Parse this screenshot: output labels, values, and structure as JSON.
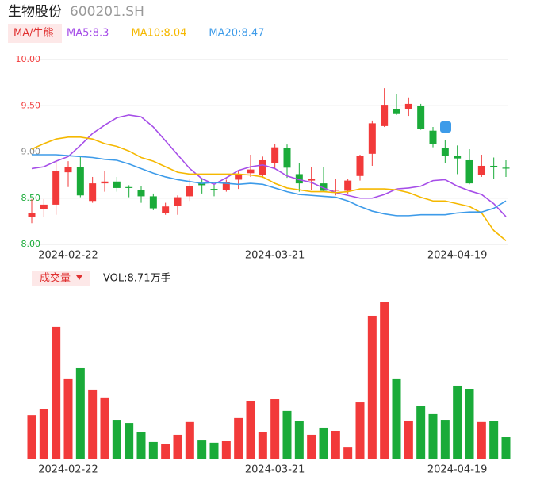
{
  "header": {
    "name": "生物股份",
    "code": "600201.SH"
  },
  "chart_data": {
    "type": "candlestick",
    "indicator_button": "MA/牛熊",
    "categories": [
      null,
      null,
      null,
      "2024-02-22",
      null,
      null,
      null,
      null,
      null,
      null,
      null,
      null,
      null,
      null,
      null,
      null,
      null,
      null,
      null,
      null,
      "2024-03-21",
      null,
      null,
      null,
      null,
      null,
      null,
      null,
      null,
      null,
      null,
      null,
      null,
      null,
      null,
      "2024-04-19",
      null,
      null,
      null,
      null
    ],
    "open": [
      8.3,
      8.38,
      8.43,
      8.78,
      8.84,
      8.47,
      8.66,
      8.68,
      8.62,
      8.59,
      8.52,
      8.34,
      8.42,
      8.52,
      8.66,
      8.6,
      8.59,
      8.7,
      8.77,
      8.75,
      8.88,
      9.04,
      8.76,
      8.69,
      8.66,
      8.58,
      8.58,
      8.74,
      8.98,
      9.28,
      9.46,
      9.46,
      9.5,
      9.23,
      9.04,
      8.96,
      8.91,
      8.75,
      8.85,
      8.83
    ],
    "high": [
      8.49,
      8.49,
      8.9,
      8.9,
      8.95,
      8.73,
      8.79,
      8.73,
      8.64,
      8.63,
      8.55,
      8.45,
      8.53,
      8.71,
      8.71,
      8.65,
      8.7,
      8.79,
      8.97,
      8.95,
      9.09,
      9.08,
      8.88,
      8.84,
      8.84,
      8.71,
      8.71,
      8.97,
      9.34,
      9.69,
      9.63,
      9.59,
      9.52,
      9.27,
      9.13,
      9.07,
      9.03,
      8.97,
      8.94,
      8.91
    ],
    "low": [
      8.23,
      8.3,
      8.32,
      8.62,
      8.51,
      8.45,
      8.57,
      8.57,
      8.51,
      8.45,
      8.37,
      8.32,
      8.32,
      8.47,
      8.55,
      8.52,
      8.57,
      8.6,
      8.73,
      8.72,
      8.82,
      8.72,
      8.57,
      8.59,
      8.57,
      8.53,
      8.55,
      8.69,
      8.85,
      9.27,
      9.4,
      9.39,
      9.24,
      9.05,
      8.88,
      8.76,
      8.65,
      8.73,
      8.71,
      8.73
    ],
    "close": [
      8.34,
      8.43,
      8.79,
      8.84,
      8.53,
      8.66,
      8.68,
      8.61,
      8.61,
      8.52,
      8.39,
      8.41,
      8.51,
      8.63,
      8.64,
      8.59,
      8.67,
      8.76,
      8.81,
      8.91,
      9.05,
      8.83,
      8.66,
      8.71,
      8.58,
      8.59,
      8.69,
      8.96,
      9.31,
      9.51,
      9.41,
      9.52,
      9.25,
      9.09,
      8.96,
      8.93,
      8.66,
      8.85,
      8.84,
      8.82
    ],
    "up_color": "#f23a3a",
    "down_color": "#1aab39",
    "ylim": [
      8.0,
      10.0
    ],
    "yticks": [
      {
        "value": 10,
        "label": "10.00"
      },
      {
        "value": 9.5,
        "label": "9.50"
      },
      {
        "value": 9,
        "label": "9.00"
      },
      {
        "value": 8.5,
        "label": "8.50"
      },
      {
        "value": 8,
        "label": "8.00"
      }
    ],
    "ytick_colors": [
      "#f23a3a",
      "#f23a3a",
      "#888888",
      "#1aab39",
      "#1aab39"
    ],
    "grid": true,
    "series": [
      {
        "name": "MA5:8.3",
        "color": "#a64ee8",
        "values": [
          8.82,
          8.84,
          8.9,
          8.95,
          9.07,
          9.2,
          9.29,
          9.37,
          9.4,
          9.38,
          9.27,
          9.12,
          8.97,
          8.82,
          8.71,
          8.65,
          8.72,
          8.8,
          8.84,
          8.86,
          8.82,
          8.74,
          8.7,
          8.67,
          8.61,
          8.56,
          8.53,
          8.5,
          8.5,
          8.54,
          8.6,
          8.61,
          8.63,
          8.69,
          8.7,
          8.63,
          8.58,
          8.54,
          8.44,
          8.3
        ]
      },
      {
        "name": "MA10:8.04",
        "color": "#f5b800",
        "values": [
          9.03,
          9.09,
          9.14,
          9.16,
          9.16,
          9.14,
          9.09,
          9.06,
          9.01,
          8.94,
          8.9,
          8.84,
          8.78,
          8.76,
          8.76,
          8.76,
          8.76,
          8.76,
          8.75,
          8.73,
          8.66,
          8.61,
          8.59,
          8.57,
          8.57,
          8.56,
          8.57,
          8.6,
          8.6,
          8.6,
          8.59,
          8.56,
          8.51,
          8.47,
          8.47,
          8.44,
          8.41,
          8.34,
          8.15,
          8.04
        ]
      },
      {
        "name": "MA20:8.47",
        "color": "#3d9be9",
        "values": [
          8.97,
          8.97,
          8.97,
          8.96,
          8.95,
          8.94,
          8.92,
          8.91,
          8.87,
          8.82,
          8.77,
          8.73,
          8.7,
          8.68,
          8.66,
          8.67,
          8.66,
          8.65,
          8.66,
          8.65,
          8.61,
          8.57,
          8.54,
          8.53,
          8.52,
          8.51,
          8.47,
          8.41,
          8.36,
          8.33,
          8.31,
          8.31,
          8.32,
          8.32,
          8.32,
          8.34,
          8.35,
          8.35,
          8.39,
          8.47
        ]
      }
    ],
    "volume": {
      "button": "成交量",
      "label": "VOL:8.71万手",
      "values": [
        17.7,
        20.3,
        53.6,
        32.3,
        36.8,
        28.1,
        24.9,
        15.8,
        14.5,
        10.7,
        6.8,
        6.1,
        9.7,
        14.9,
        7.4,
        6.5,
        7.1,
        16.5,
        23.3,
        10.7,
        24.2,
        19.4,
        15.2,
        9.7,
        12.6,
        11.3,
        4.8,
        22.9,
        58.1,
        63.9,
        32.3,
        15.5,
        21.3,
        18.1,
        15.8,
        29.7,
        28.4,
        14.9,
        15.2,
        8.71
      ]
    }
  }
}
